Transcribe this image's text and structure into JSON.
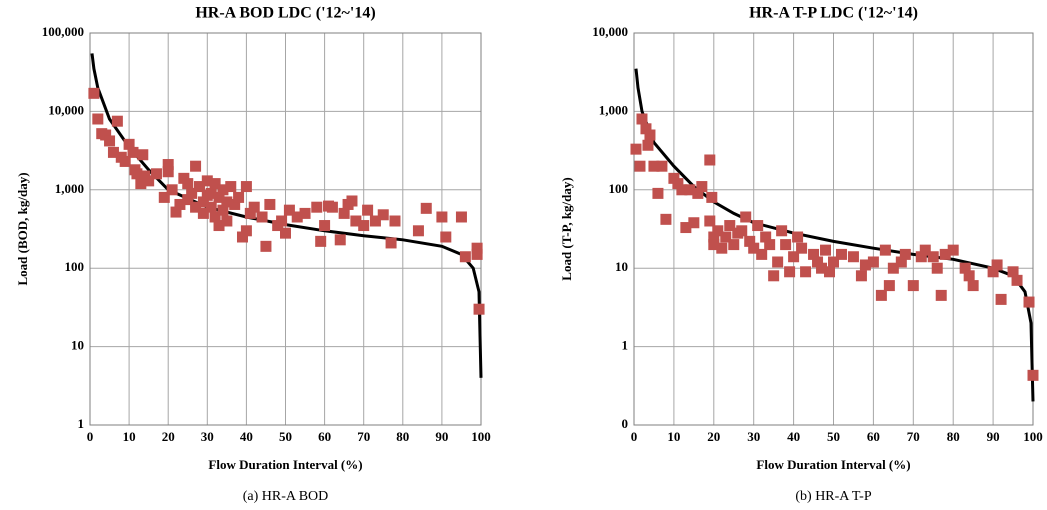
{
  "chart_data": [
    {
      "type": "scatter",
      "title": "HR-A  BOD  LDC ('12~'14)",
      "x_label": "Flow Duration Interval (%)",
      "y_label": "Load (BOD, kg/day)",
      "caption": "(a)  HR-A  BOD",
      "log_y": true,
      "grid": true,
      "xlim": [
        0,
        100
      ],
      "xticks": [
        0,
        10,
        20,
        30,
        40,
        50,
        60,
        70,
        80,
        90,
        100
      ],
      "ylim": [
        1,
        100000
      ],
      "yticks": [
        1,
        10,
        100,
        {
          "value": 1000,
          "label": "1,000"
        },
        {
          "value": 10000,
          "label": "10,000"
        },
        {
          "value": 100000,
          "label": "100,000"
        }
      ],
      "series": [
        {
          "mark": "line",
          "color": "#000000",
          "x": [
            0.5,
            1,
            2,
            5,
            10,
            15,
            20,
            30,
            40,
            50,
            60,
            70,
            80,
            90,
            95,
            98,
            99.5,
            100
          ],
          "values": [
            55000,
            35000,
            20000,
            8000,
            3500,
            1800,
            1000,
            600,
            450,
            360,
            300,
            260,
            230,
            190,
            150,
            100,
            50,
            4
          ]
        },
        {
          "mark": "scatter",
          "color": "#c0504d",
          "x": [
            1,
            2,
            3,
            4,
            5,
            6,
            7,
            8,
            9,
            10,
            11,
            11.5,
            12,
            13,
            13.5,
            14,
            15,
            17,
            19,
            20,
            20,
            21,
            22,
            23,
            24,
            25,
            25,
            26,
            27,
            27,
            28,
            29,
            29,
            30,
            30,
            31,
            31,
            32,
            32,
            33,
            33,
            34,
            34,
            35,
            35,
            36,
            37,
            38,
            39,
            40,
            40,
            41,
            42,
            44,
            45,
            46,
            48,
            49,
            50,
            51,
            53,
            55,
            58,
            59,
            60,
            61,
            62,
            64,
            65,
            66,
            67,
            68,
            70,
            71,
            73,
            75,
            77,
            78,
            84,
            86,
            90,
            91,
            95,
            96,
            99,
            99,
            99.5
          ],
          "values": [
            17000,
            8000,
            5200,
            5000,
            4200,
            3000,
            7500,
            2600,
            2300,
            3800,
            3000,
            1800,
            1600,
            1200,
            2800,
            1500,
            1300,
            1600,
            800,
            2100,
            1700,
            1000,
            520,
            650,
            1400,
            1200,
            750,
            900,
            2000,
            600,
            1100,
            700,
            500,
            1300,
            850,
            900,
            600,
            1200,
            450,
            800,
            350,
            1000,
            550,
            700,
            400,
            1100,
            650,
            800,
            250,
            1100,
            300,
            500,
            600,
            450,
            190,
            650,
            350,
            400,
            280,
            550,
            450,
            500,
            600,
            220,
            350,
            620,
            600,
            230,
            500,
            650,
            720,
            400,
            350,
            550,
            400,
            480,
            210,
            400,
            300,
            580,
            450,
            250,
            450,
            140,
            180,
            150,
            30
          ]
        }
      ]
    },
    {
      "type": "scatter",
      "title": "HR-A  T-P  LDC ('12~'14)",
      "x_label": "Flow Duration Interval (%)",
      "y_label": "Load (T-P, kg/day)",
      "caption": "(b)  HR-A  T-P",
      "log_y": true,
      "grid": true,
      "xlim": [
        0,
        100
      ],
      "xticks": [
        0,
        10,
        20,
        30,
        40,
        50,
        60,
        70,
        80,
        90,
        100
      ],
      "ylim": [
        0.1,
        10000
      ],
      "yticks": [
        {
          "value": 0.1,
          "label": "0"
        },
        1,
        10,
        100,
        {
          "value": 1000,
          "label": "1,000"
        },
        {
          "value": 10000,
          "label": "10,000"
        }
      ],
      "series": [
        {
          "mark": "line",
          "color": "#000000",
          "x": [
            0.5,
            1,
            2,
            5,
            10,
            15,
            20,
            25,
            30,
            40,
            50,
            60,
            70,
            80,
            90,
            95,
            98,
            99.5,
            100
          ],
          "values": [
            3500,
            2000,
            1000,
            400,
            200,
            110,
            70,
            50,
            38,
            28,
            22,
            18,
            15,
            13,
            10,
            8,
            5,
            2,
            0.2
          ]
        },
        {
          "mark": "scatter",
          "color": "#c0504d",
          "x": [
            0.5,
            1.5,
            2,
            3,
            3.5,
            4,
            5,
            6,
            7,
            8,
            10,
            11,
            12,
            13,
            14,
            15,
            16,
            17,
            19,
            19,
            19.5,
            20,
            20,
            21,
            22,
            23,
            24,
            25,
            26,
            27,
            28,
            29,
            30,
            31,
            32,
            33,
            34,
            35,
            36,
            37,
            38,
            39,
            40,
            41,
            42,
            43,
            45,
            46,
            47,
            48,
            49,
            50,
            52,
            55,
            57,
            58,
            60,
            62,
            63,
            64,
            65,
            67,
            68,
            70,
            72,
            73,
            75,
            76,
            77,
            78,
            80,
            83,
            84,
            85,
            90,
            91,
            92,
            95,
            96,
            99,
            100
          ],
          "values": [
            330,
            200,
            800,
            600,
            370,
            500,
            200,
            90,
            200,
            42,
            140,
            120,
            100,
            33,
            100,
            38,
            90,
            110,
            240,
            40,
            80,
            25,
            20,
            30,
            18,
            25,
            35,
            20,
            28,
            30,
            45,
            22,
            18,
            35,
            15,
            25,
            20,
            8,
            12,
            30,
            20,
            9,
            14,
            25,
            18,
            9,
            15,
            12,
            10,
            17,
            9,
            12,
            15,
            14,
            8,
            11,
            12,
            4.5,
            17,
            6,
            10,
            12,
            15,
            6,
            14,
            17,
            14,
            10,
            4.5,
            15,
            17,
            10,
            8,
            6,
            9,
            11,
            4,
            9,
            7,
            3.7,
            0.43
          ]
        }
      ]
    }
  ]
}
